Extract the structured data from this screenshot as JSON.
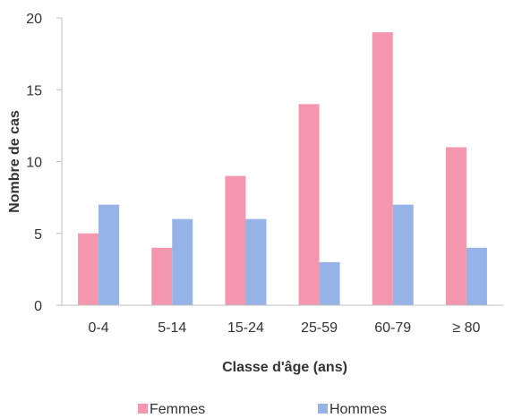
{
  "chart_data": {
    "type": "bar",
    "categories": [
      "0-4",
      "5-14",
      "15-24",
      "25-59",
      "60-79",
      "≥ 80"
    ],
    "series": [
      {
        "name": "Femmes",
        "values": [
          5,
          4,
          9,
          14,
          19,
          11
        ],
        "color": "#f497ae"
      },
      {
        "name": "Hommes",
        "values": [
          7,
          6,
          6,
          3,
          7,
          4
        ],
        "color": "#95b3e6"
      }
    ],
    "xlabel": "Classe d'âge (ans)",
    "ylabel": "Nombre de cas",
    "ylim": [
      0,
      20
    ],
    "yticks": [
      0,
      5,
      10,
      15,
      20
    ],
    "grid": false,
    "legend_position": "bottom"
  }
}
